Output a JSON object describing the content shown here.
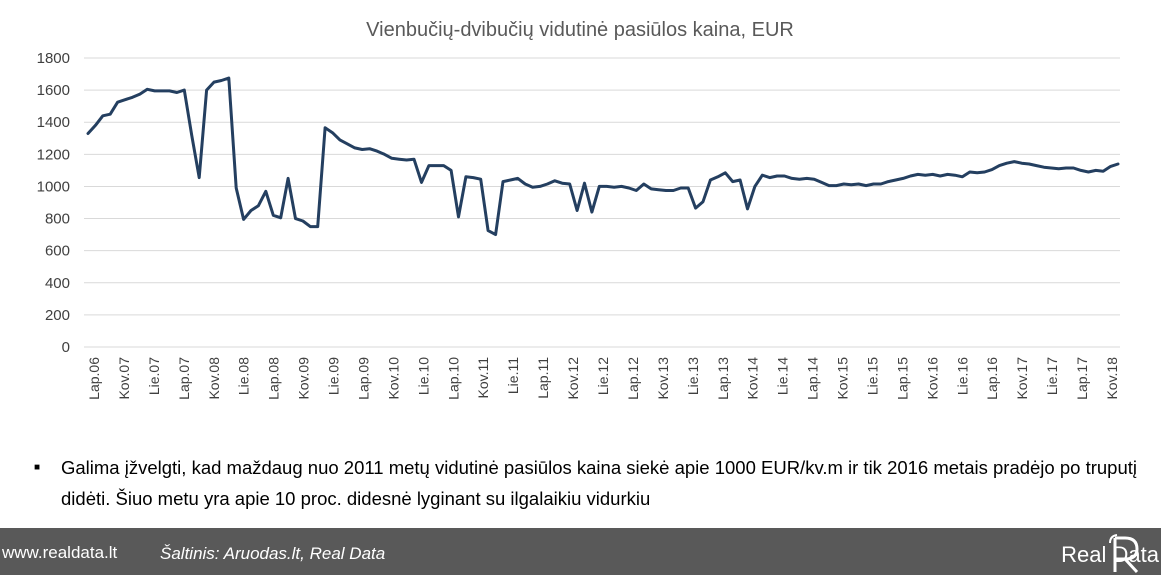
{
  "footer": {
    "website": "www.realdata.lt",
    "source": "Šaltinis: Aruodas.lt, Real Data",
    "logo_text": "Real Data"
  },
  "note": {
    "text": "Galima įžvelgti, kad maždaug nuo 2011 metų vidutinė pasiūlos kaina siekė apie 1000 EUR/kv.m ir tik 2016 metais pradėjo po truputį didėti. Šiuo metu yra apie 10 proc. didesnė lyginant su ilgalaikiu vidurkiu"
  },
  "colors": {
    "line": "#243f60",
    "grid": "#d9d9d9",
    "footer_bg": "#595959"
  },
  "chart_data": {
    "type": "line",
    "title": "Vienbučių-dvibučių vidutinė pasiūlos kaina, EUR",
    "xlabel": "",
    "ylabel": "",
    "ylim": [
      0,
      1800
    ],
    "yticks": [
      0,
      200,
      400,
      600,
      800,
      1000,
      1200,
      1400,
      1600,
      1800
    ],
    "grid": true,
    "legend": "none",
    "x_tick_labels": [
      "Lap.06",
      "Kov.07",
      "Lie.07",
      "Lap.07",
      "Kov.08",
      "Lie.08",
      "Lap.08",
      "Kov.09",
      "Lie.09",
      "Lap.09",
      "Kov.10",
      "Lie.10",
      "Lap.10",
      "Kov.11",
      "Lie.11",
      "Lap.11",
      "Kov.12",
      "Lie.12",
      "Lap.12",
      "Kov.13",
      "Lie.13",
      "Lap.13",
      "Kov.14",
      "Lie.14",
      "Lap.14",
      "Kov.15",
      "Lie.15",
      "Lap.15",
      "Kov.16",
      "Lie.16",
      "Lap.16",
      "Kov.17",
      "Lie.17",
      "Lap.17",
      "Kov.18"
    ],
    "series": [
      {
        "values": [
          1330,
          1380,
          1440,
          1450,
          1525,
          1540,
          1555,
          1575,
          1605,
          1595,
          1595,
          1595,
          1585,
          1600,
          1320,
          1055,
          1600,
          1650,
          1660,
          1675,
          990,
          795,
          850,
          880,
          970,
          820,
          805,
          1050,
          800,
          785,
          750,
          750,
          1365,
          1335,
          1290,
          1265,
          1240,
          1230,
          1235,
          1220,
          1200,
          1175,
          1170,
          1165,
          1170,
          1025,
          1130,
          1130,
          1130,
          1100,
          810,
          1060,
          1055,
          1045,
          725,
          700,
          1030,
          1040,
          1050,
          1015,
          995,
          1000,
          1015,
          1035,
          1020,
          1015,
          850,
          1020,
          840,
          1000,
          1000,
          995,
          1000,
          990,
          975,
          1015,
          985,
          980,
          975,
          975,
          990,
          990,
          865,
          905,
          1040,
          1060,
          1085,
          1030,
          1040,
          860,
          1000,
          1070,
          1055,
          1065,
          1065,
          1050,
          1045,
          1050,
          1045,
          1025,
          1005,
          1005,
          1015,
          1010,
          1015,
          1005,
          1015,
          1015,
          1030,
          1040,
          1050,
          1065,
          1075,
          1070,
          1075,
          1065,
          1075,
          1070,
          1060,
          1090,
          1085,
          1090,
          1105,
          1130,
          1145,
          1155,
          1145,
          1140,
          1130,
          1120,
          1115,
          1110,
          1115,
          1115,
          1100,
          1090,
          1100,
          1095,
          1125,
          1140
        ]
      }
    ]
  }
}
